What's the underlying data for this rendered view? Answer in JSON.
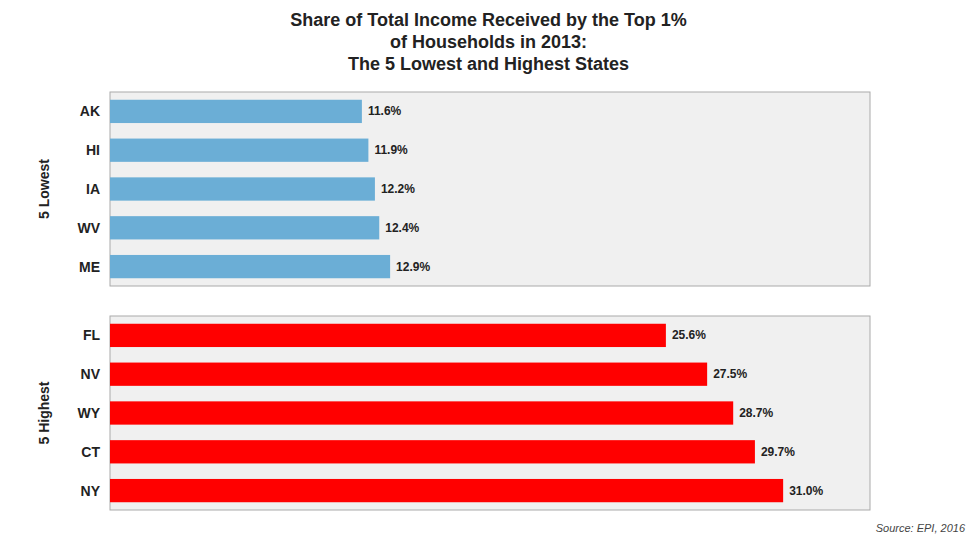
{
  "chart_data": [
    {
      "type": "bar",
      "orientation": "horizontal",
      "title": "Share of Total Income Received by the Top 1%\nof Households in 2013:\nThe 5 Lowest and Highest States",
      "ylabel": "5 Lowest",
      "categories": [
        "AK",
        "HI",
        "IA",
        "WV",
        "ME"
      ],
      "values": [
        11.6,
        11.9,
        12.2,
        12.4,
        12.9
      ],
      "value_labels": [
        "11.6%",
        "11.9%",
        "12.2%",
        "12.4%",
        "12.9%"
      ],
      "color": "#6baed6",
      "xlim": [
        0,
        35
      ],
      "tick_labels": "y",
      "data_labels": true,
      "grid": false
    },
    {
      "type": "bar",
      "orientation": "horizontal",
      "ylabel": "5 Highest",
      "categories": [
        "FL",
        "NV",
        "WY",
        "CT",
        "NY"
      ],
      "values": [
        25.6,
        27.5,
        28.7,
        29.7,
        31.0
      ],
      "value_labels": [
        "25.6%",
        "27.5%",
        "28.7%",
        "29.7%",
        "31.0%"
      ],
      "color": "#ff0000",
      "xlim": [
        0,
        35
      ],
      "tick_labels": "y",
      "data_labels": true,
      "grid": false,
      "annotations": [
        "Source: EPI, 2016"
      ]
    }
  ]
}
